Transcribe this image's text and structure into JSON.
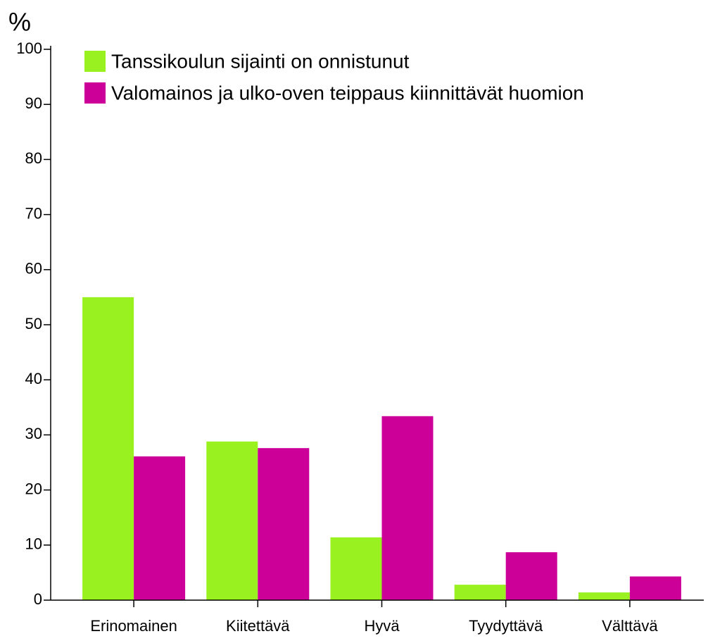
{
  "chart_data": {
    "type": "bar",
    "y_label": "%",
    "categories": [
      "Erinomainen",
      "Kiitettävä",
      "Hyvä",
      "Tyydyttävä",
      "Välttävä"
    ],
    "series": [
      {
        "name": "Tanssikoulun sijainti on onnistunut",
        "color": "#99f21f",
        "values": [
          55.0,
          28.8,
          11.4,
          2.8,
          1.4
        ]
      },
      {
        "name": "Valomainos ja ulko-oven teippaus kiinnittävät huomion",
        "color": "#cc0099",
        "values": [
          26.1,
          27.6,
          33.4,
          8.7,
          4.3
        ]
      }
    ],
    "ylim": [
      0,
      100
    ],
    "yticks": [
      0,
      10,
      20,
      30,
      40,
      50,
      60,
      70,
      80,
      90,
      100
    ],
    "grid": false
  }
}
